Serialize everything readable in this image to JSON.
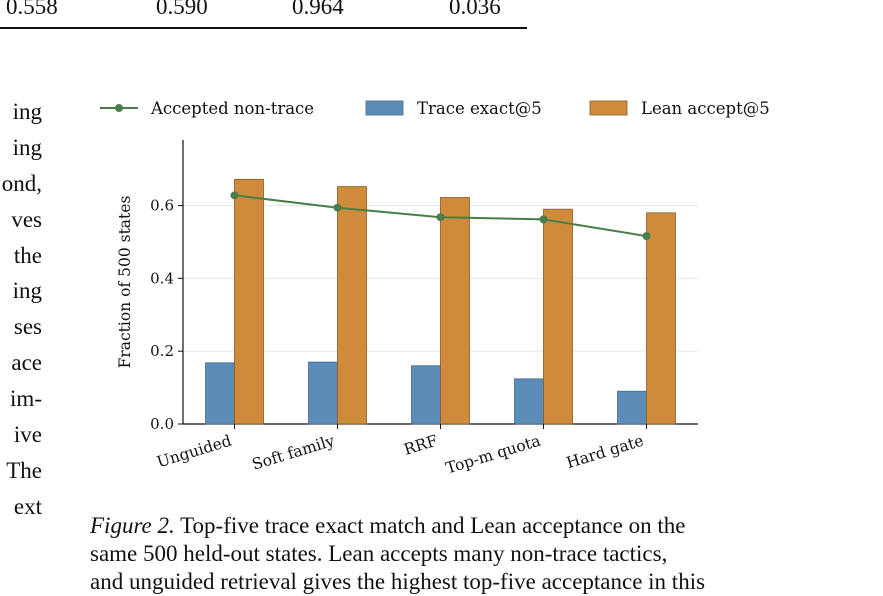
{
  "table": {
    "last_row": [
      "0.558",
      "0.590",
      "0.964",
      "0.036"
    ]
  },
  "left_column_text": [
    "ing",
    "ing",
    "ond,",
    "ves",
    "the",
    "ing",
    "ses",
    "ace",
    "im-",
    "ive",
    "The",
    "ext"
  ],
  "chart_data": {
    "type": "bar",
    "categories": [
      "Unguided",
      "Soft family",
      "RRF",
      "Top-m quota",
      "Hard gate"
    ],
    "series": [
      {
        "name": "Trace exact@5",
        "type": "bar",
        "color": "#5b8db8",
        "values": [
          0.168,
          0.17,
          0.16,
          0.124,
          0.09
        ]
      },
      {
        "name": "Lean accept@5",
        "type": "bar",
        "color": "#d08a3c",
        "values": [
          0.672,
          0.652,
          0.622,
          0.59,
          0.58
        ]
      },
      {
        "name": "Accepted non-trace",
        "type": "line",
        "color": "#4a7d4a",
        "values": [
          0.628,
          0.594,
          0.568,
          0.562,
          0.516
        ]
      }
    ],
    "ylabel": "Fraction of 500 states",
    "xlabel": "",
    "ylim": [
      0,
      0.78
    ],
    "yticks": [
      "0.0",
      "0.2",
      "0.4",
      "0.6"
    ],
    "legend_order": [
      "Accepted non-trace",
      "Trace exact@5",
      "Lean accept@5"
    ],
    "legend_placement": "top",
    "grid": true
  },
  "caption": {
    "label": "Figure 2.",
    "lines": [
      "Top-five trace exact match and Lean acceptance on the",
      "same 500 held-out states.  Lean accepts many non-trace tactics,",
      "and unguided retrieval gives the highest top-five acceptance in this"
    ]
  }
}
